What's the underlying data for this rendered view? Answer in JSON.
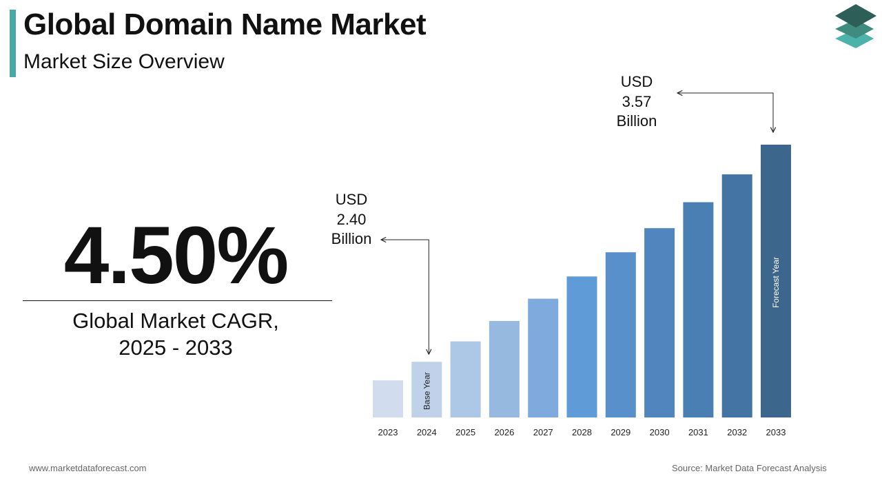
{
  "header": {
    "title": "Global Domain Name Market",
    "subtitle": "Market Size Overview"
  },
  "cagr": {
    "value": "4.50%",
    "label_line1": "Global Market CAGR,",
    "label_line2": "2025 - 2033"
  },
  "callouts": {
    "start": {
      "line1": "USD",
      "line2": "2.40",
      "line3": "Billion"
    },
    "end": {
      "line1": "USD",
      "line2": "3.57",
      "line3": "Billion"
    }
  },
  "chart_data": {
    "type": "bar",
    "categories": [
      "2023",
      "2024",
      "2025",
      "2026",
      "2027",
      "2028",
      "2029",
      "2030",
      "2031",
      "2032",
      "2033"
    ],
    "values": [
      2.3,
      2.4,
      2.51,
      2.62,
      2.74,
      2.86,
      2.99,
      3.12,
      3.26,
      3.41,
      3.57
    ],
    "bar_colors": [
      "#d1ddef",
      "#bfd2ea",
      "#adc7e7",
      "#96b9e0",
      "#7eaade",
      "#5f9bd6",
      "#5890cb",
      "#5086bd",
      "#4a7fb4",
      "#4474a3",
      "#3d668d"
    ],
    "bar_annotations": [
      {
        "category": "2024",
        "text": "Base Year",
        "color": "#222222"
      },
      {
        "category": "2033",
        "text": "Forecast Year",
        "color": "#ffffff"
      }
    ],
    "ylim": [
      2.1,
      3.57
    ]
  },
  "footer": {
    "website": "www.marketdataforecast.com",
    "source": "Source: Market Data Forecast Analysis"
  },
  "colors": {
    "accent": "#4aa8a8",
    "logo_top": "#2e5e58",
    "logo_middle": "#3f8b80",
    "logo_bottom": "#4cb3aa"
  }
}
